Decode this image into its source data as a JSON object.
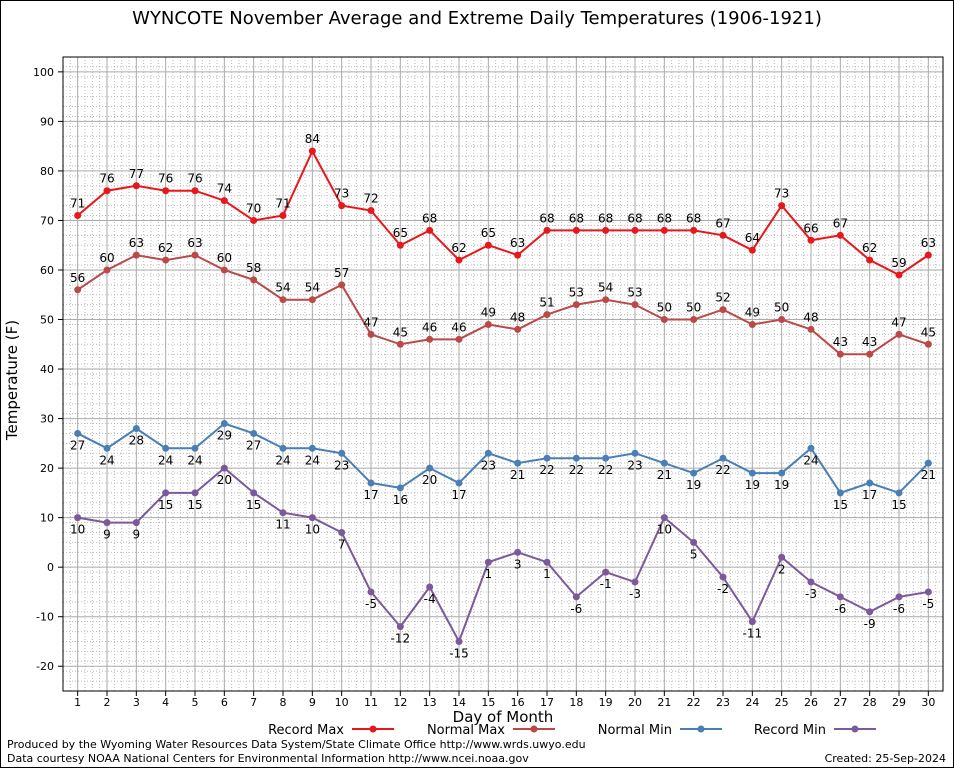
{
  "chart_data": {
    "type": "line",
    "title": "WYNCOTE November Average and Extreme Daily Temperatures (1906-1921)",
    "xlabel": "Day of Month",
    "ylabel": "Temperature (F)",
    "x": [
      1,
      2,
      3,
      4,
      5,
      6,
      7,
      8,
      9,
      10,
      11,
      12,
      13,
      14,
      15,
      16,
      17,
      18,
      19,
      20,
      21,
      22,
      23,
      24,
      25,
      26,
      27,
      28,
      29,
      30
    ],
    "ylim": [
      -25,
      103
    ],
    "yticks": [
      -20,
      -10,
      0,
      10,
      20,
      30,
      40,
      50,
      60,
      70,
      80,
      90,
      100
    ],
    "grid": true,
    "legend_position": "bottom",
    "series": [
      {
        "name": "Record Max",
        "color": "#e8171c",
        "label_pos": "above",
        "values": [
          71,
          76,
          77,
          76,
          76,
          74,
          70,
          71,
          84,
          73,
          72,
          65,
          68,
          62,
          65,
          63,
          68,
          68,
          68,
          68,
          68,
          68,
          67,
          64,
          73,
          66,
          67,
          62,
          59,
          63
        ]
      },
      {
        "name": "Normal Max",
        "color": "#b94a48",
        "label_pos": "above",
        "values": [
          56,
          60,
          63,
          62,
          63,
          60,
          58,
          54,
          54,
          57,
          47,
          45,
          46,
          46,
          49,
          48,
          51,
          53,
          54,
          53,
          50,
          50,
          52,
          49,
          50,
          48,
          43,
          43,
          47,
          45
        ]
      },
      {
        "name": "Normal Min",
        "color": "#4a7fb5",
        "label_pos": "below",
        "values": [
          27,
          24,
          28,
          24,
          24,
          29,
          27,
          24,
          24,
          23,
          17,
          16,
          20,
          17,
          23,
          21,
          22,
          22,
          22,
          23,
          21,
          19,
          22,
          19,
          19,
          24,
          15,
          17,
          15,
          21
        ]
      },
      {
        "name": "Record Min",
        "color": "#7a5a9a",
        "label_pos": "below",
        "values": [
          10,
          9,
          9,
          15,
          15,
          20,
          15,
          11,
          10,
          7,
          -5,
          -12,
          -4,
          -15,
          1,
          3,
          1,
          -6,
          -1,
          -3,
          10,
          5,
          -2,
          -11,
          2,
          -3,
          -6,
          -9,
          -6,
          -5
        ]
      }
    ]
  },
  "footer": {
    "credit_line1": "Produced by the Wyoming Water Resources Data System/State Climate Office http://www.wrds.uwyo.edu",
    "credit_line2": "Data courtesy NOAA National Centers for Environmental Information http://www.ncei.noaa.gov",
    "created": "Created:  25-Sep-2024"
  }
}
